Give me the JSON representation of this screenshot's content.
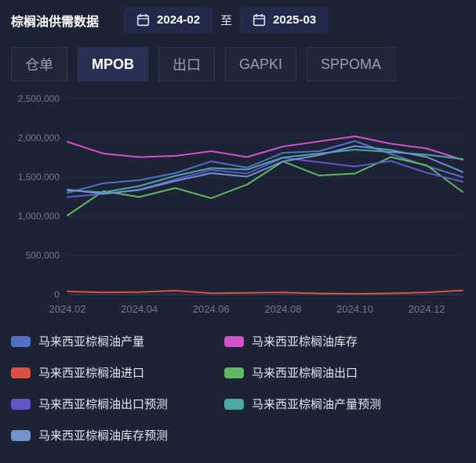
{
  "page": {
    "title": "棕榈油供需数据"
  },
  "date_range": {
    "from": "2024-02",
    "separator": "至",
    "to": "2025-03"
  },
  "icons": {
    "date_picker": "calendar-icon"
  },
  "tabs": [
    {
      "label": "仓单",
      "active": false
    },
    {
      "label": "MPOB",
      "active": true
    },
    {
      "label": "出口",
      "active": false
    },
    {
      "label": "GAPKI",
      "active": false
    },
    {
      "label": "SPPOMA",
      "active": false
    }
  ],
  "chart_data": {
    "type": "line",
    "x": [
      "2024.02",
      "2024.03",
      "2024.04",
      "2024.05",
      "2024.06",
      "2024.07",
      "2024.08",
      "2024.09",
      "2024.10",
      "2024.11",
      "2024.12",
      "2025.01"
    ],
    "xticks": [
      "2024.02",
      "2024.04",
      "2024.06",
      "2024.08",
      "2024.10",
      "2024.12"
    ],
    "yticks": [
      {
        "value": 0,
        "label": "0"
      },
      {
        "value": 500000,
        "label": "500,000"
      },
      {
        "value": 1000000,
        "label": "1,000,000"
      },
      {
        "value": 1500000,
        "label": "1,500,000"
      },
      {
        "value": 2000000,
        "label": "2,000,000"
      },
      {
        "value": 2500000,
        "label": "2,500,000"
      }
    ],
    "ylim": [
      0,
      2500000
    ],
    "grid": true,
    "legend_position": "bottom",
    "series": [
      {
        "name": "马来西亚棕榈油产量",
        "color": "#5470c6",
        "values": [
          1300000,
          1420000,
          1460000,
          1550000,
          1700000,
          1620000,
          1810000,
          1830000,
          1960000,
          1795000,
          1640000,
          1500000
        ]
      },
      {
        "name": "马来西亚棕榈油库存",
        "color": "#d351c9",
        "values": [
          1950000,
          1800000,
          1755000,
          1770000,
          1830000,
          1755000,
          1890000,
          1955000,
          2020000,
          1925000,
          1865000,
          1720000
        ]
      },
      {
        "name": "马来西亚棕榈油进口",
        "color": "#dd5145",
        "values": [
          40000,
          28000,
          33000,
          50000,
          18000,
          22000,
          27000,
          15000,
          10000,
          16000,
          28000,
          52000
        ]
      },
      {
        "name": "马来西亚棕榈油出口",
        "color": "#61b861",
        "values": [
          1010000,
          1320000,
          1245000,
          1360000,
          1230000,
          1405000,
          1700000,
          1520000,
          1545000,
          1755000,
          1650000,
          1310000
        ]
      },
      {
        "name": "马来西亚棕榈油出口预测",
        "color": "#6156c9",
        "values": [
          1245000,
          1285000,
          1340000,
          1470000,
          1590000,
          1545000,
          1745000,
          1690000,
          1635000,
          1705000,
          1555000,
          1440000
        ]
      },
      {
        "name": "马来西亚棕榈油产量预测",
        "color": "#4aa8a2",
        "values": [
          1330000,
          1305000,
          1385000,
          1515000,
          1615000,
          1595000,
          1750000,
          1800000,
          1850000,
          1820000,
          1785000,
          1730000
        ]
      },
      {
        "name": "马来西亚棕榈油库存预测",
        "color": "#7193cc",
        "values": [
          1340000,
          1285000,
          1335000,
          1450000,
          1550000,
          1505000,
          1700000,
          1780000,
          1895000,
          1845000,
          1755000,
          1565000
        ]
      }
    ]
  }
}
